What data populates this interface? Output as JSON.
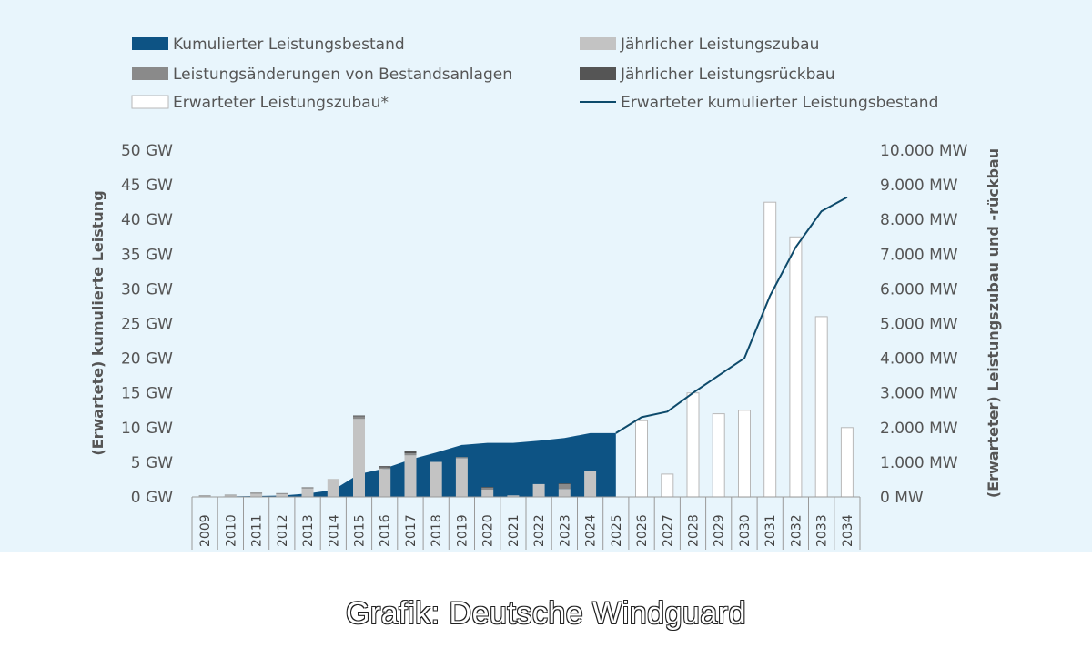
{
  "chart_data": {
    "type": "bar",
    "categories": [
      "2009",
      "2010",
      "2011",
      "2012",
      "2013",
      "2014",
      "2015",
      "2016",
      "2017",
      "2018",
      "2019",
      "2020",
      "2021",
      "2022",
      "2023",
      "2024",
      "2025",
      "2026",
      "2027",
      "2028",
      "2029",
      "2030",
      "2031",
      "2032",
      "2033",
      "2034"
    ],
    "left_axis": {
      "label": "(Erwartete) kumulierte Leistung",
      "unit": "GW",
      "range": [
        0,
        50
      ],
      "ticks": [
        "0 GW",
        "5 GW",
        "10 GW",
        "15 GW",
        "20 GW",
        "25 GW",
        "30 GW",
        "35 GW",
        "40 GW",
        "45 GW",
        "50 GW"
      ]
    },
    "right_axis": {
      "label": "(Erwarteter) Leistungszubau und -rückbau",
      "unit": "MW",
      "range": [
        0,
        10000
      ],
      "ticks": [
        "0 MW",
        "1.000 MW",
        "2.000 MW",
        "3.000 MW",
        "4.000 MW",
        "5.000 MW",
        "6.000 MW",
        "7.000 MW",
        "8.000 MW",
        "9.000 MW",
        "10.000 MW"
      ]
    },
    "legend_position": "top",
    "gridlines": false,
    "series": [
      {
        "name": "Kumulierter Leistungsbestand",
        "axis": "left",
        "kind": "area",
        "color": "#0d5384",
        "values": [
          0.03,
          0.08,
          0.13,
          0.2,
          0.5,
          1.0,
          3.3,
          4.1,
          5.4,
          6.4,
          7.5,
          7.8,
          7.8,
          8.1,
          8.5,
          9.2,
          9.2,
          null,
          null,
          null,
          null,
          null,
          null,
          null,
          null,
          null
        ]
      },
      {
        "name": "Jährlicher Leistungszubau",
        "axis": "right",
        "kind": "bar",
        "color": "#c3c3c3",
        "values": [
          35,
          50,
          90,
          80,
          240,
          520,
          2250,
          810,
          1200,
          1010,
          1120,
          210,
          45,
          370,
          230,
          740,
          null,
          null,
          null,
          null,
          null,
          null,
          null,
          null,
          null,
          null
        ]
      },
      {
        "name": "Leistungsänderungen von Bestandsanlagen",
        "axis": "right",
        "kind": "bar",
        "color": "#8a8a8a",
        "values": [
          10,
          15,
          35,
          30,
          40,
          0,
          70,
          40,
          55,
          0,
          30,
          60,
          0,
          0,
          140,
          0,
          null,
          null,
          null,
          null,
          null,
          null,
          null,
          null,
          null,
          null
        ]
      },
      {
        "name": "Jährlicher Leistungsrückbau",
        "axis": "right",
        "kind": "bar",
        "color": "#555555",
        "values": [
          0,
          0,
          0,
          0,
          0,
          0,
          30,
          40,
          70,
          0,
          0,
          20,
          0,
          0,
          20,
          0,
          null,
          null,
          null,
          null,
          null,
          null,
          null,
          null,
          null,
          null
        ]
      },
      {
        "name": "Erwarteter Leistungszubau*",
        "axis": "right",
        "kind": "bar",
        "color": "#ffffff",
        "values": [
          null,
          null,
          null,
          null,
          null,
          null,
          null,
          null,
          null,
          null,
          null,
          null,
          null,
          null,
          null,
          null,
          null,
          2200,
          660,
          3000,
          2400,
          2500,
          8500,
          7500,
          5200,
          2000
        ]
      },
      {
        "name": "Erwarteter kumulierter Leistungsbestand",
        "axis": "left",
        "kind": "line",
        "color": "#0d4a6b",
        "values": [
          null,
          null,
          null,
          null,
          null,
          null,
          null,
          null,
          null,
          null,
          null,
          null,
          null,
          null,
          null,
          null,
          9.2,
          11.5,
          12.3,
          15.0,
          17.5,
          20.0,
          29.0,
          36.0,
          41.2,
          43.2
        ]
      }
    ]
  },
  "credit": "Grafik: Deutsche Windguard"
}
